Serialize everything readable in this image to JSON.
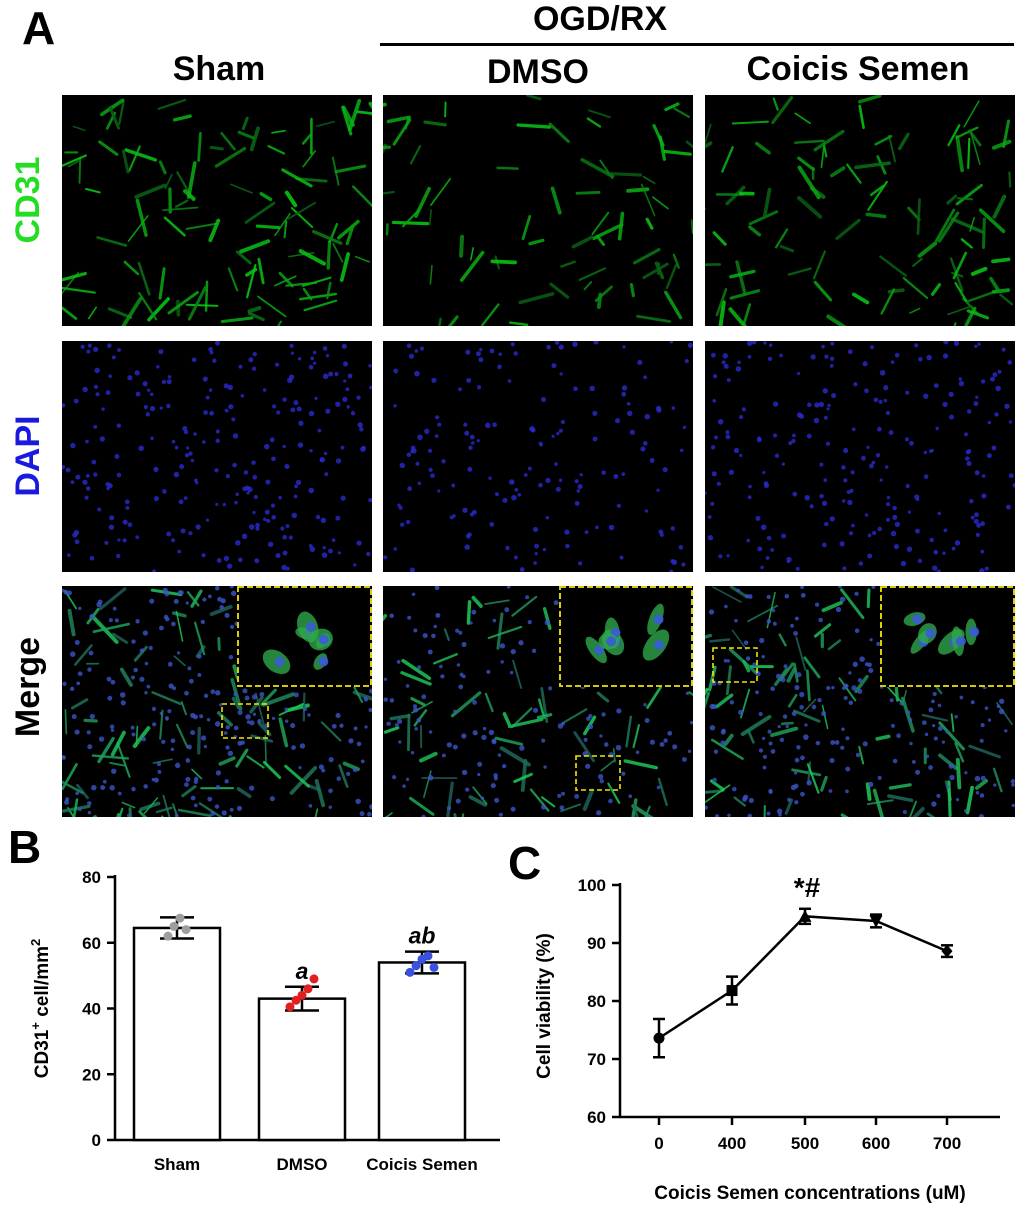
{
  "panel_a": {
    "letter": "A",
    "group_header": "OGD/RX",
    "columns": [
      "Sham",
      "DMSO",
      "Coicis Semen"
    ],
    "rows": [
      {
        "label": "CD31",
        "color": "#22dd22"
      },
      {
        "label": "DAPI",
        "color": "#1a1adf"
      },
      {
        "label": "Merge",
        "color": "#000000"
      }
    ]
  },
  "panel_b": {
    "letter": "B"
  },
  "panel_c": {
    "letter": "C"
  },
  "chart_data": [
    {
      "type": "bar",
      "panel": "B",
      "categories": [
        "Sham",
        "DMSO",
        "Coicis Semen"
      ],
      "values": [
        64.5,
        43.0,
        54.0
      ],
      "error": [
        3.2,
        3.6,
        3.3
      ],
      "points": [
        [
          62.0,
          65.0,
          67.5,
          64.0
        ],
        [
          40.5,
          42.5,
          44.0,
          46.0,
          49.0
        ],
        [
          51.0,
          53.0,
          55.0,
          56.0,
          52.5
        ]
      ],
      "point_colors": [
        "#9e9e9e",
        "#e02020",
        "#3a50e0"
      ],
      "annotations": [
        "",
        "a",
        "ab"
      ],
      "ylabel_main": "CD31",
      "ylabel_sup": "+",
      "ylabel_rest": " cell/mm",
      "ylabel_sup2": "2",
      "xlabel": "",
      "ylim": [
        0,
        80
      ],
      "yticks": [
        0,
        20,
        40,
        60,
        80
      ]
    },
    {
      "type": "line",
      "panel": "C",
      "x": [
        "0",
        "400",
        "500",
        "600",
        "700"
      ],
      "y": [
        73.6,
        81.8,
        94.6,
        93.8,
        88.6
      ],
      "error": [
        3.3,
        2.4,
        1.3,
        1.1,
        1.0
      ],
      "markers": [
        "circle",
        "square",
        "triangle-up",
        "triangle-down",
        "diamond"
      ],
      "annotation": "*#",
      "annotation_index": 2,
      "ylabel": "Cell viability (%)",
      "xlabel": "Coicis Semen concentrations (uM)",
      "ylim": [
        60,
        100
      ],
      "yticks": [
        60,
        70,
        80,
        90,
        100
      ]
    }
  ]
}
